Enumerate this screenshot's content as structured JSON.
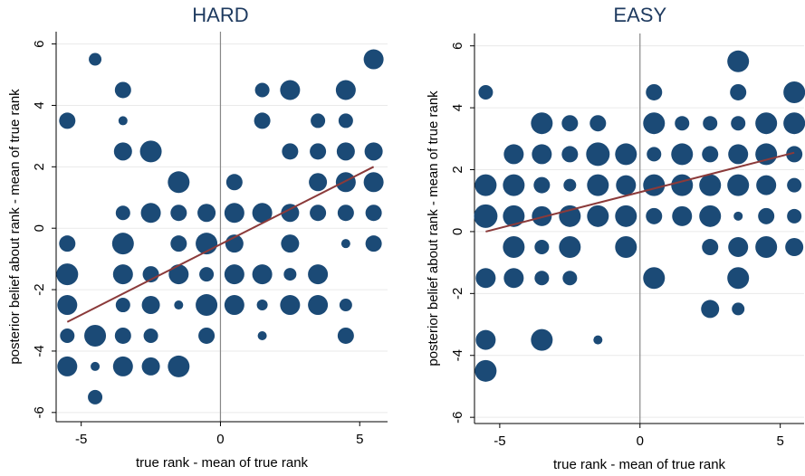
{
  "chart_data": [
    {
      "type": "scatter",
      "title": "HARD",
      "xlabel": "true rank - mean of true rank",
      "ylabel": "posterior belief about rank - mean of true rank",
      "color": "#1b4a76",
      "xlim": [
        -5.9,
        6.0
      ],
      "ylim": [
        -6.3,
        6.4
      ],
      "xticks": [
        -5,
        0,
        5
      ],
      "yticks": [
        -6,
        -4,
        -2,
        0,
        2,
        4,
        6
      ],
      "grid": true,
      "xline": 0,
      "x": [
        -4.5,
        -3.5,
        1.5,
        2.5,
        4.5,
        5.5,
        -5.5,
        -3.5,
        1.5,
        3.5,
        4.5,
        -3.5,
        -2.5,
        2.5,
        3.5,
        4.5,
        5.5,
        -1.5,
        0.5,
        3.5,
        4.5,
        5.5,
        -3.5,
        -2.5,
        -1.5,
        -0.5,
        0.5,
        1.5,
        2.5,
        3.5,
        4.5,
        5.5,
        -5.5,
        -3.5,
        -1.5,
        -0.5,
        0.5,
        2.5,
        4.5,
        5.5,
        -5.5,
        -3.5,
        -2.5,
        -1.5,
        -0.5,
        0.5,
        1.5,
        2.5,
        3.5,
        -5.5,
        -3.5,
        -2.5,
        -1.5,
        -0.5,
        0.5,
        1.5,
        2.5,
        3.5,
        4.5,
        -5.5,
        -4.5,
        -3.5,
        -2.5,
        -0.5,
        1.5,
        4.5,
        -5.5,
        -4.5,
        -3.5,
        -2.5,
        -1.5,
        -4.5
      ],
      "values": [
        5.5,
        4.5,
        4.5,
        4.5,
        4.5,
        5.5,
        3.5,
        3.5,
        3.5,
        3.5,
        3.5,
        2.5,
        2.5,
        2.5,
        2.5,
        2.5,
        2.5,
        1.5,
        1.5,
        1.5,
        1.5,
        1.5,
        0.5,
        0.5,
        0.5,
        0.5,
        0.5,
        0.5,
        0.5,
        0.5,
        0.5,
        0.5,
        -0.5,
        -0.5,
        -0.5,
        -0.5,
        -0.5,
        -0.5,
        -0.5,
        -0.5,
        -1.5,
        -1.5,
        -1.5,
        -1.5,
        -1.5,
        -1.5,
        -1.5,
        -1.5,
        -1.5,
        -2.5,
        -2.5,
        -2.5,
        -2.5,
        -2.5,
        -2.5,
        -2.5,
        -2.5,
        -2.5,
        -2.5,
        -3.5,
        -3.5,
        -3.5,
        -3.5,
        -3.5,
        -3.5,
        -3.5,
        -4.5,
        -4.5,
        -4.5,
        -4.5,
        -4.5,
        -5.5
      ],
      "sizes": [
        7,
        9,
        8,
        11,
        11,
        11,
        9,
        5,
        9,
        8,
        8,
        10,
        12,
        9,
        9,
        10,
        10,
        12,
        9,
        10,
        11,
        11,
        8,
        11,
        9,
        10,
        11,
        11,
        10,
        9,
        9,
        9,
        9,
        12,
        9,
        12,
        10,
        10,
        5,
        9,
        12,
        11,
        9,
        11,
        8,
        11,
        11,
        7,
        11,
        11,
        8,
        10,
        5,
        12,
        11,
        6,
        11,
        11,
        7,
        8,
        12,
        9,
        8,
        9,
        5,
        9,
        11,
        5,
        11,
        10,
        12,
        8
      ],
      "fit": {
        "color": "#8b3a3a",
        "x": [
          -5.5,
          5.5
        ],
        "y": [
          -3.05,
          2.0
        ]
      }
    },
    {
      "type": "scatter",
      "title": "EASY",
      "xlabel": "true rank - mean of true rank",
      "ylabel": "posterior belief about rank - mean of true rank",
      "color": "#1b4a76",
      "xlim": [
        -5.9,
        5.85
      ],
      "ylim": [
        -6.2,
        6.4
      ],
      "xticks": [
        -5,
        0,
        5
      ],
      "yticks": [
        -6,
        -4,
        -2,
        0,
        2,
        4,
        6
      ],
      "grid": true,
      "xline": 0,
      "x": [
        3.5,
        -5.5,
        0.5,
        3.5,
        5.5,
        -3.5,
        -2.5,
        -1.5,
        0.5,
        1.5,
        2.5,
        3.5,
        4.5,
        5.5,
        -4.5,
        -3.5,
        -2.5,
        -1.5,
        -0.5,
        0.5,
        1.5,
        2.5,
        3.5,
        4.5,
        5.5,
        -5.5,
        -4.5,
        -3.5,
        -2.5,
        -1.5,
        -0.5,
        0.5,
        1.5,
        2.5,
        3.5,
        4.5,
        5.5,
        -5.5,
        -4.5,
        -3.5,
        -2.5,
        -1.5,
        -0.5,
        0.5,
        1.5,
        2.5,
        3.5,
        4.5,
        5.5,
        -4.5,
        -3.5,
        -2.5,
        -0.5,
        2.5,
        3.5,
        4.5,
        5.5,
        -5.5,
        -4.5,
        -3.5,
        -2.5,
        0.5,
        3.5,
        2.5,
        3.5,
        -5.5,
        -3.5,
        -1.5,
        -5.5
      ],
      "values": [
        5.5,
        4.5,
        4.5,
        4.5,
        4.5,
        3.5,
        3.5,
        3.5,
        3.5,
        3.5,
        3.5,
        3.5,
        3.5,
        3.5,
        2.5,
        2.5,
        2.5,
        2.5,
        2.5,
        2.5,
        2.5,
        2.5,
        2.5,
        2.5,
        2.5,
        1.5,
        1.5,
        1.5,
        1.5,
        1.5,
        1.5,
        1.5,
        1.5,
        1.5,
        1.5,
        1.5,
        1.5,
        0.5,
        0.5,
        0.5,
        0.5,
        0.5,
        0.5,
        0.5,
        0.5,
        0.5,
        0.5,
        0.5,
        0.5,
        -0.5,
        -0.5,
        -0.5,
        -0.5,
        -0.5,
        -0.5,
        -0.5,
        -0.5,
        -1.5,
        -1.5,
        -1.5,
        -1.5,
        -1.5,
        -1.5,
        -2.5,
        -2.5,
        -3.5,
        -3.5,
        -3.5,
        -4.5
      ],
      "sizes": [
        12,
        8,
        9,
        9,
        12,
        12,
        9,
        9,
        12,
        8,
        8,
        8,
        12,
        12,
        11,
        11,
        9,
        13,
        12,
        8,
        12,
        9,
        11,
        12,
        9,
        12,
        12,
        9,
        7,
        12,
        11,
        12,
        12,
        12,
        12,
        11,
        8,
        13,
        12,
        11,
        12,
        12,
        12,
        9,
        11,
        12,
        5,
        9,
        8,
        12,
        8,
        12,
        12,
        9,
        11,
        12,
        10,
        11,
        11,
        8,
        8,
        12,
        12,
        10,
        7,
        11,
        12,
        5,
        12
      ],
      "fit": {
        "color": "#8b3a3a",
        "x": [
          -5.5,
          5.5
        ],
        "y": [
          0.0,
          2.55
        ]
      }
    }
  ]
}
